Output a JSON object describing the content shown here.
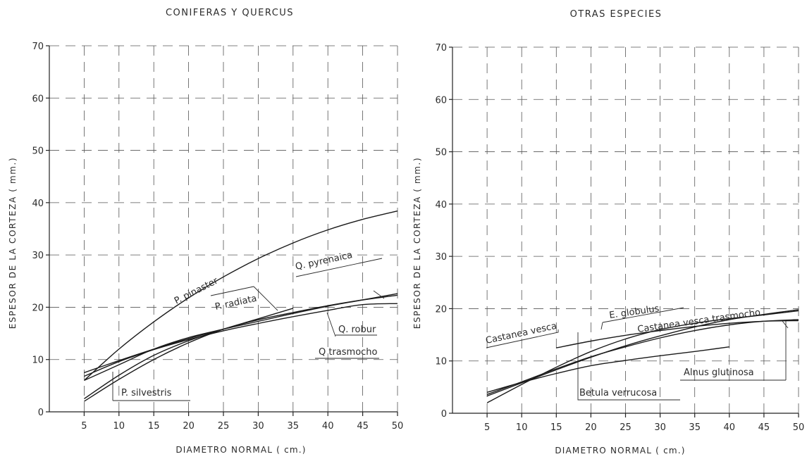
{
  "chart_data": [
    {
      "type": "line",
      "title": "CONIFERAS Y QUERCUS",
      "xlabel": "DIAMETRO NORMAL ( cm.)",
      "ylabel": "ESPESOR DE LA CORTEZA ( mm.)",
      "xlim": [
        0,
        50
      ],
      "ylim": [
        0,
        70
      ],
      "xticks": [
        5,
        10,
        15,
        20,
        25,
        30,
        35,
        40,
        45,
        50
      ],
      "yticks": [
        0,
        10,
        20,
        30,
        40,
        50,
        60,
        70
      ],
      "grid": true,
      "series": [
        {
          "name": "P. pinaster",
          "x": [
            5,
            10,
            15,
            20,
            25,
            30,
            35,
            40,
            45,
            50
          ],
          "y": [
            6,
            12,
            17.2,
            21.8,
            25.8,
            29.3,
            32.3,
            34.8,
            36.8,
            38.4
          ]
        },
        {
          "name": "Q. pyrenaica",
          "x": [
            5,
            10,
            15,
            20,
            25,
            30,
            35,
            40,
            45,
            50
          ],
          "y": [
            2,
            6.2,
            10,
            13.2,
            15.8,
            17.6,
            19,
            20.3,
            21.4,
            22.3
          ]
        },
        {
          "name": "P. radiata",
          "x": [
            5,
            10,
            15,
            20,
            25,
            30,
            35
          ],
          "y": [
            2.5,
            7,
            10.8,
            13.6,
            15.8,
            17.8,
            19.8
          ]
        },
        {
          "name": "Q. robur",
          "x": [
            5,
            10,
            15,
            20,
            25,
            30,
            35,
            40,
            45,
            50
          ],
          "y": [
            6.8,
            9.6,
            11.9,
            13.8,
            15.5,
            16.9,
            18.2,
            19.4,
            20.5,
            20.7
          ]
        },
        {
          "name": "Q trasmocho",
          "x": [
            5,
            10,
            15,
            20,
            25,
            30,
            35,
            40,
            45,
            50
          ],
          "y": [
            7.5,
            9.8,
            12,
            14,
            15.8,
            17.3,
            18.8,
            20.2,
            21.4,
            22.6
          ]
        },
        {
          "name": "P. silvestris",
          "x": [
            5,
            10,
            15,
            20,
            25
          ],
          "y": [
            6,
            9,
            12,
            14.2,
            15.8
          ]
        }
      ],
      "annotations": [
        "P. pinaster",
        "Q. pyrenaica",
        "P. radiata",
        "Q. robur",
        "Q trasmocho",
        "P. silvestris"
      ]
    },
    {
      "type": "line",
      "title": "OTRAS ESPECIES",
      "xlabel": "DIAMETRO NORMAL ( cm.)",
      "ylabel": "ESPESOR DE LA CORTEZA ( mm.)",
      "xlim": [
        0,
        50
      ],
      "ylim": [
        0,
        70
      ],
      "xticks": [
        5,
        10,
        15,
        20,
        25,
        30,
        35,
        40,
        45,
        50
      ],
      "yticks": [
        0,
        10,
        20,
        30,
        40,
        50,
        60,
        70
      ],
      "grid": true,
      "series": [
        {
          "name": "Castanea vesca",
          "x": [
            5,
            10,
            15,
            20,
            25,
            30,
            35,
            40,
            45,
            50
          ],
          "y": [
            2,
            5.5,
            8.8,
            11.8,
            14.2,
            16,
            17.2,
            18.1,
            18.8,
            19.6
          ]
        },
        {
          "name": "E. globulus",
          "x": [
            15,
            20,
            25,
            30,
            35,
            40,
            45,
            50
          ],
          "y": [
            12.5,
            13.8,
            14.9,
            15.8,
            16.6,
            17.2,
            17.6,
            17.7
          ]
        },
        {
          "name": "Castanea vesca trasmocho",
          "x": [
            5,
            10,
            15,
            20,
            25,
            30,
            35,
            40,
            45,
            50
          ],
          "y": [
            3.3,
            5.8,
            8.3,
            10.7,
            12.9,
            14.8,
            16.5,
            17.9,
            18.9,
            19.8
          ]
        },
        {
          "name": "Betula verrucosa",
          "x": [
            5,
            10,
            15,
            20,
            25,
            30,
            35,
            40
          ],
          "y": [
            4,
            5.9,
            7.6,
            9.1,
            10.1,
            11,
            11.8,
            12.7
          ]
        },
        {
          "name": "Alnus glutinosa",
          "x": [
            5,
            10,
            15,
            20,
            25,
            30,
            35,
            40,
            45,
            50
          ],
          "y": [
            3.6,
            6,
            8.5,
            10.8,
            12.7,
            14.4,
            15.8,
            16.9,
            17.6,
            17.9
          ]
        }
      ],
      "annotations": [
        "Castanea vesca",
        "E. globulus",
        "Castanea vesca trasmocho",
        "Betula verrucosa",
        "Alnus glutinosa"
      ]
    }
  ]
}
